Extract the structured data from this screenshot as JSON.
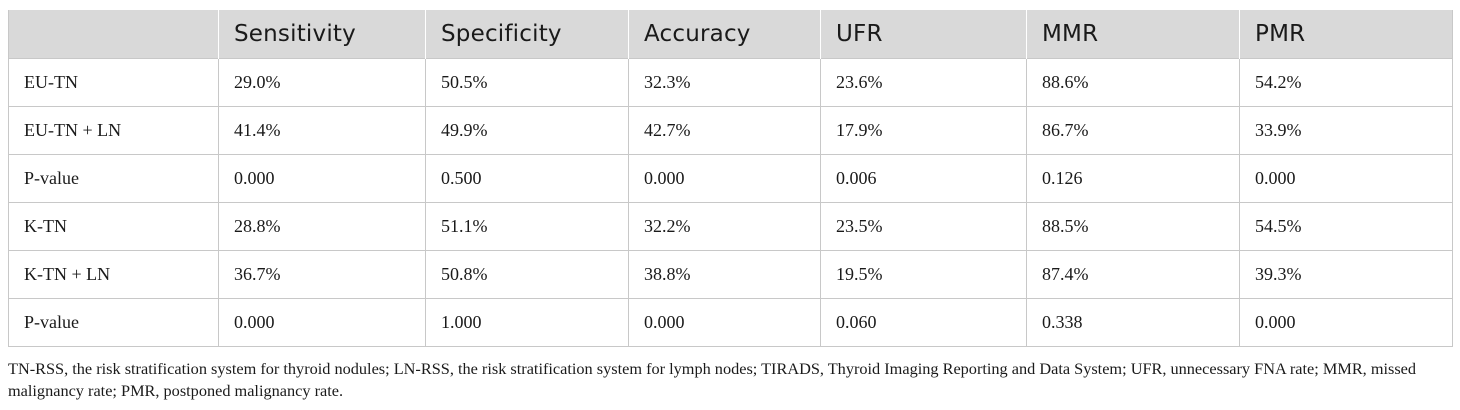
{
  "table": {
    "headers": [
      "",
      "Sensitivity",
      "Specificity",
      "Accuracy",
      "UFR",
      "MMR",
      "PMR"
    ],
    "rows": [
      [
        "EU-TN",
        "29.0%",
        "50.5%",
        "32.3%",
        "23.6%",
        "88.6%",
        "54.2%"
      ],
      [
        "EU-TN + LN",
        "41.4%",
        "49.9%",
        "42.7%",
        "17.9%",
        "86.7%",
        "33.9%"
      ],
      [
        "P-value",
        "0.000",
        "0.500",
        "0.000",
        "0.006",
        "0.126",
        "0.000"
      ],
      [
        "K-TN",
        "28.8%",
        "51.1%",
        "32.2%",
        "23.5%",
        "88.5%",
        "54.5%"
      ],
      [
        "K-TN + LN",
        "36.7%",
        "50.8%",
        "38.8%",
        "19.5%",
        "87.4%",
        "39.3%"
      ],
      [
        "P-value",
        "0.000",
        "1.000",
        "0.000",
        "0.060",
        "0.338",
        "0.000"
      ]
    ]
  },
  "footnote": "TN-RSS, the risk stratification system for thyroid nodules; LN-RSS, the risk stratification system for lymph nodes; TIRADS, Thyroid Imaging Reporting and Data System; UFR, unnecessary FNA rate; MMR, missed malignancy rate; PMR, postponed malignancy rate.",
  "colors": {
    "header_bg": "#d9d9d9",
    "border": "#c8c8c8",
    "text": "#1a1a1a"
  }
}
